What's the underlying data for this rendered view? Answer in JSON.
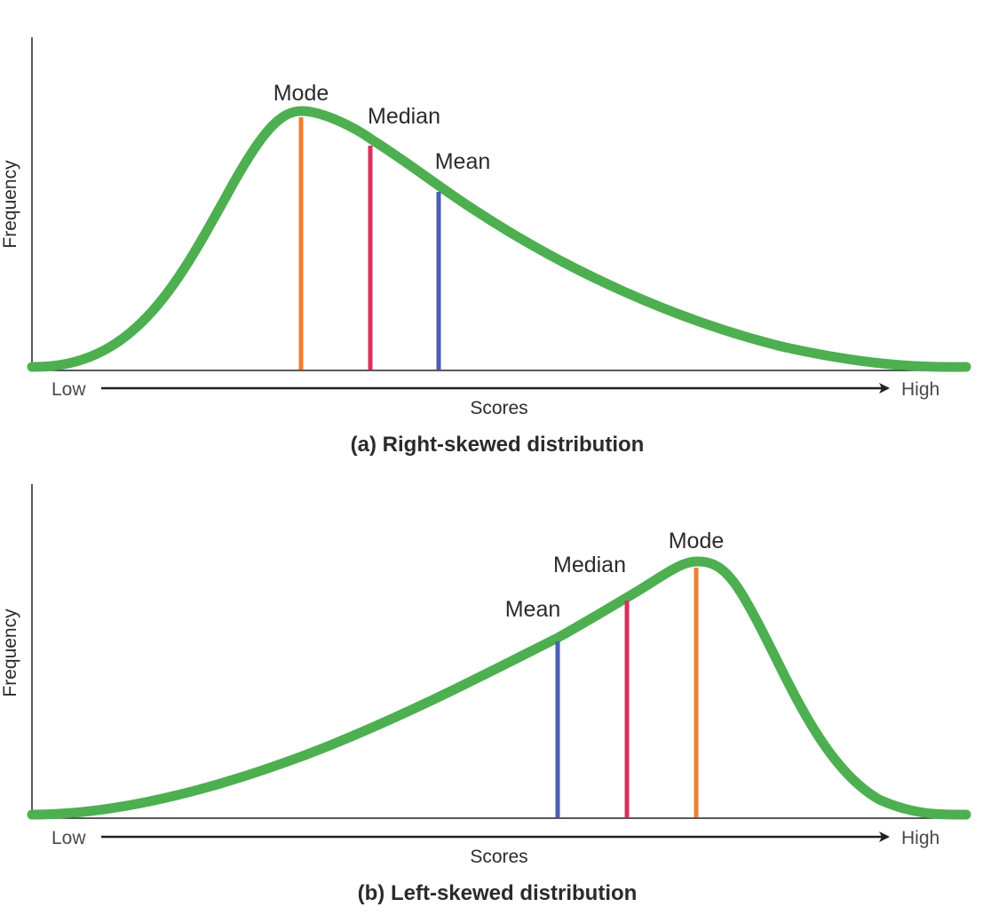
{
  "colors": {
    "curve": "#4daf50",
    "mode": "#f07f2e",
    "median": "#d8315b",
    "mean": "#4a5fb0",
    "axis": "#222222"
  },
  "panels": [
    {
      "caption": "(a) Right-skewed distribution",
      "ylabel": "Frequency",
      "xlabel": "Scores",
      "low_label": "Low",
      "high_label": "High",
      "skew": "right",
      "markers": {
        "mode": "Mode",
        "median": "Median",
        "mean": "Mean"
      }
    },
    {
      "caption": "(b) Left-skewed distribution",
      "ylabel": "Frequency",
      "xlabel": "Scores",
      "low_label": "Low",
      "high_label": "High",
      "skew": "left",
      "markers": {
        "mode": "Mode",
        "median": "Median",
        "mean": "Mean"
      }
    }
  ]
}
